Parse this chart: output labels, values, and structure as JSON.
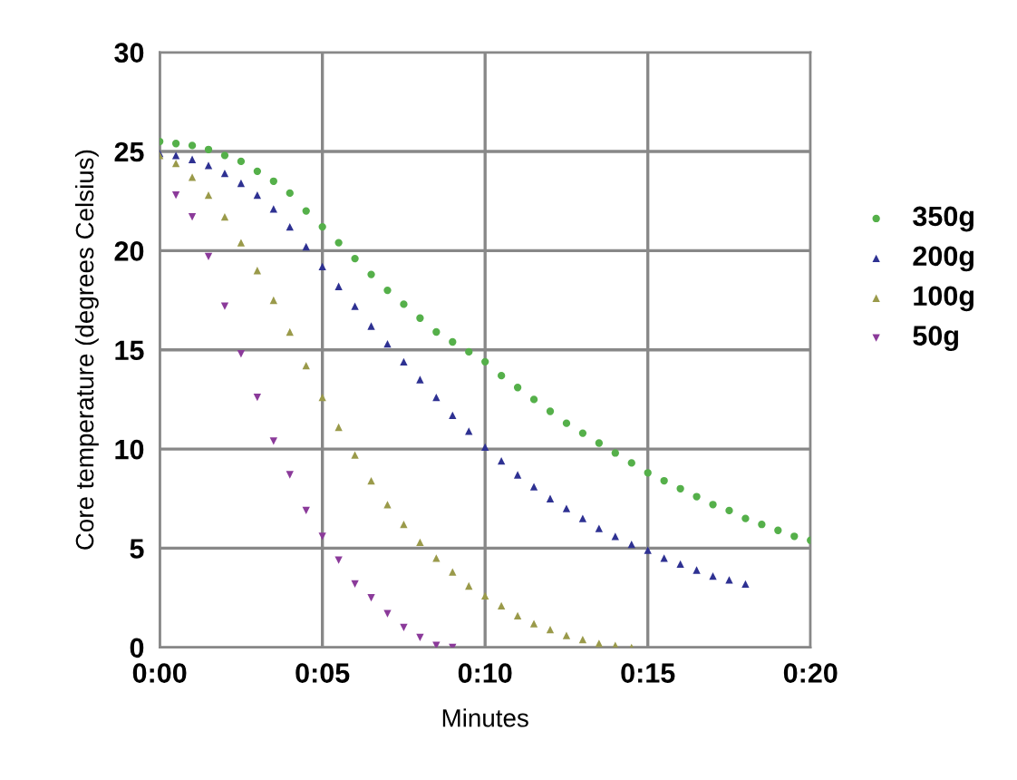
{
  "chart_data": {
    "type": "scatter",
    "xlabel": "Minutes",
    "ylabel": "Core temperature (degrees Celsius)",
    "xlim": [
      0,
      20
    ],
    "xticks": [
      {
        "value": 0,
        "label": "0:00"
      },
      {
        "value": 5,
        "label": "0:05"
      },
      {
        "value": 10,
        "label": "0:10"
      },
      {
        "value": 15,
        "label": "0:15"
      },
      {
        "value": 20,
        "label": "0:20"
      }
    ],
    "ylim": [
      0,
      30
    ],
    "yticks": [
      0,
      5,
      10,
      15,
      20,
      25,
      30
    ],
    "grid": true,
    "legend": "right",
    "series": [
      {
        "name": "350g",
        "color": "#55b04a",
        "marker": "circle",
        "x": [
          0,
          0.5,
          1,
          1.5,
          2,
          2.5,
          3,
          3.5,
          4,
          4.5,
          5,
          5.5,
          6,
          6.5,
          7,
          7.5,
          8,
          8.5,
          9,
          9.5,
          10,
          10.5,
          11,
          11.5,
          12,
          12.5,
          13,
          13.5,
          14,
          14.5,
          15,
          15.5,
          16,
          16.5,
          17,
          17.5,
          18,
          18.5,
          19,
          19.5,
          20
        ],
        "values": [
          25.5,
          25.4,
          25.3,
          25.1,
          24.8,
          24.5,
          24.0,
          23.5,
          22.9,
          22.0,
          21.2,
          20.4,
          19.6,
          18.8,
          18.0,
          17.3,
          16.6,
          15.9,
          15.4,
          14.9,
          14.4,
          13.7,
          13.1,
          12.5,
          11.9,
          11.3,
          10.8,
          10.3,
          9.8,
          9.3,
          8.8,
          8.4,
          8.0,
          7.6,
          7.2,
          6.9,
          6.5,
          6.2,
          5.9,
          5.6,
          5.4
        ]
      },
      {
        "name": "200g",
        "color": "#2e3192",
        "marker": "triangle",
        "x": [
          0,
          0.5,
          1,
          1.5,
          2,
          2.5,
          3,
          3.5,
          4,
          4.5,
          5,
          5.5,
          6,
          6.5,
          7,
          7.5,
          8,
          8.5,
          9,
          9.5,
          10,
          10.5,
          11,
          11.5,
          12,
          12.5,
          13,
          13.5,
          14,
          14.5,
          15,
          15.5,
          16,
          16.5,
          17,
          17.5,
          18
        ],
        "values": [
          24.9,
          24.8,
          24.6,
          24.3,
          23.9,
          23.4,
          22.8,
          22.1,
          21.2,
          20.2,
          19.2,
          18.2,
          17.2,
          16.2,
          15.3,
          14.4,
          13.5,
          12.6,
          11.7,
          10.9,
          10.1,
          9.4,
          8.7,
          8.1,
          7.5,
          7.0,
          6.5,
          6.0,
          5.6,
          5.2,
          4.9,
          4.5,
          4.2,
          3.9,
          3.6,
          3.4,
          3.2
        ]
      },
      {
        "name": "100g",
        "color": "#9a9a4a",
        "marker": "triangle",
        "x": [
          0,
          0.5,
          1,
          1.5,
          2,
          2.5,
          3,
          3.5,
          4,
          4.5,
          5,
          5.5,
          6,
          6.5,
          7,
          7.5,
          8,
          8.5,
          9,
          9.5,
          10,
          10.5,
          11,
          11.5,
          12,
          12.5,
          13,
          13.5,
          14,
          14.5
        ],
        "values": [
          24.8,
          24.4,
          23.7,
          22.8,
          21.7,
          20.4,
          19.0,
          17.5,
          15.9,
          14.2,
          12.6,
          11.1,
          9.7,
          8.4,
          7.2,
          6.2,
          5.3,
          4.5,
          3.8,
          3.1,
          2.6,
          2.1,
          1.6,
          1.2,
          0.9,
          0.6,
          0.4,
          0.2,
          0.1,
          0
        ]
      },
      {
        "name": "50g",
        "color": "#8b3a9a",
        "marker": "triangle_down",
        "x": [
          0.5,
          1,
          1.5,
          2,
          2.5,
          3,
          3.5,
          4,
          4.5,
          5,
          5.5,
          6,
          6.5,
          7,
          7.5,
          8,
          8.5,
          9
        ],
        "values": [
          22.8,
          21.7,
          19.7,
          17.2,
          14.8,
          12.6,
          10.4,
          8.7,
          6.9,
          5.6,
          4.4,
          3.2,
          2.5,
          1.7,
          1.0,
          0.5,
          0.1,
          0
        ]
      }
    ]
  }
}
